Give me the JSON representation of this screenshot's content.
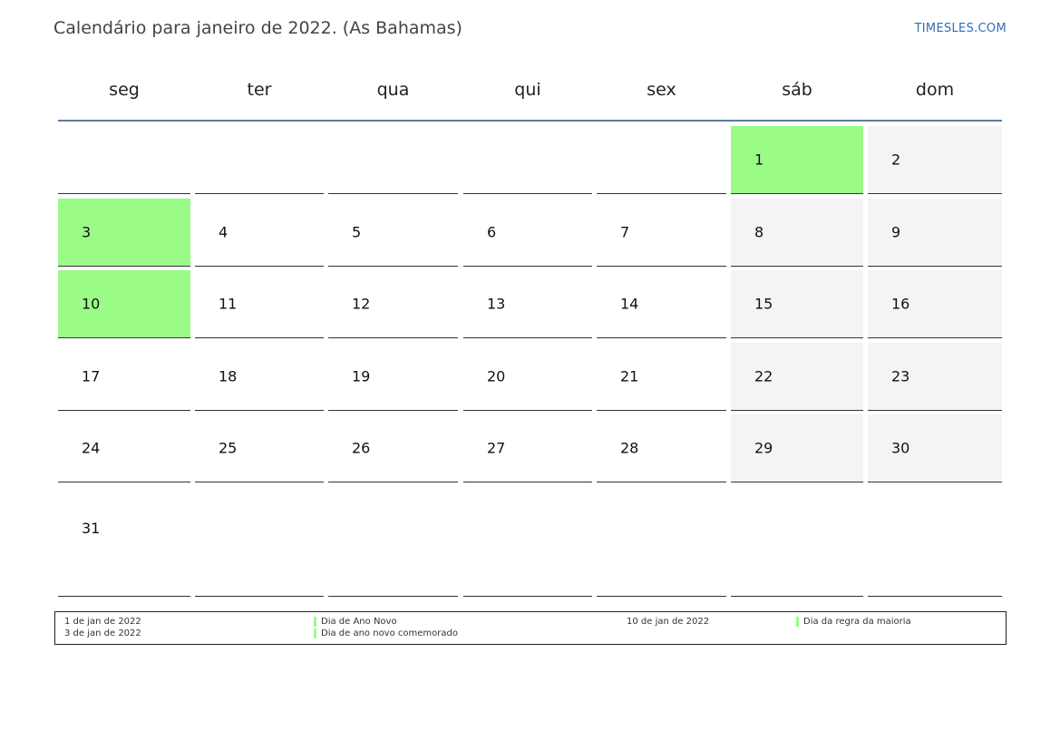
{
  "title": "Calendário para janeiro de 2022. (As Bahamas)",
  "brand": "TIMESLES.COM",
  "colors": {
    "holiday": "#9afb87",
    "weekend": "#f4f4f4",
    "header_rule": "#5a7a9c",
    "brand": "#2e6db4"
  },
  "weekdays": [
    "seg",
    "ter",
    "qua",
    "qui",
    "sex",
    "sáb",
    "dom"
  ],
  "weeks": [
    [
      "",
      "",
      "",
      "",
      "",
      "1",
      "2"
    ],
    [
      "3",
      "4",
      "5",
      "6",
      "7",
      "8",
      "9"
    ],
    [
      "10",
      "11",
      "12",
      "13",
      "14",
      "15",
      "16"
    ],
    [
      "17",
      "18",
      "19",
      "20",
      "21",
      "22",
      "23"
    ],
    [
      "24",
      "25",
      "26",
      "27",
      "28",
      "29",
      "30"
    ],
    [
      "31",
      "",
      "",
      "",
      "",
      "",
      ""
    ]
  ],
  "holidays": [
    "1",
    "3",
    "10"
  ],
  "legend": {
    "col1": [
      {
        "date": "1 de jan de 2022",
        "name": "Dia de Ano Novo"
      },
      {
        "date": "3 de jan de 2022",
        "name": "Dia de ano novo comemorado"
      }
    ],
    "col2": [
      {
        "date": "10 de jan de 2022",
        "name": "Dia da regra da maioria"
      }
    ]
  }
}
